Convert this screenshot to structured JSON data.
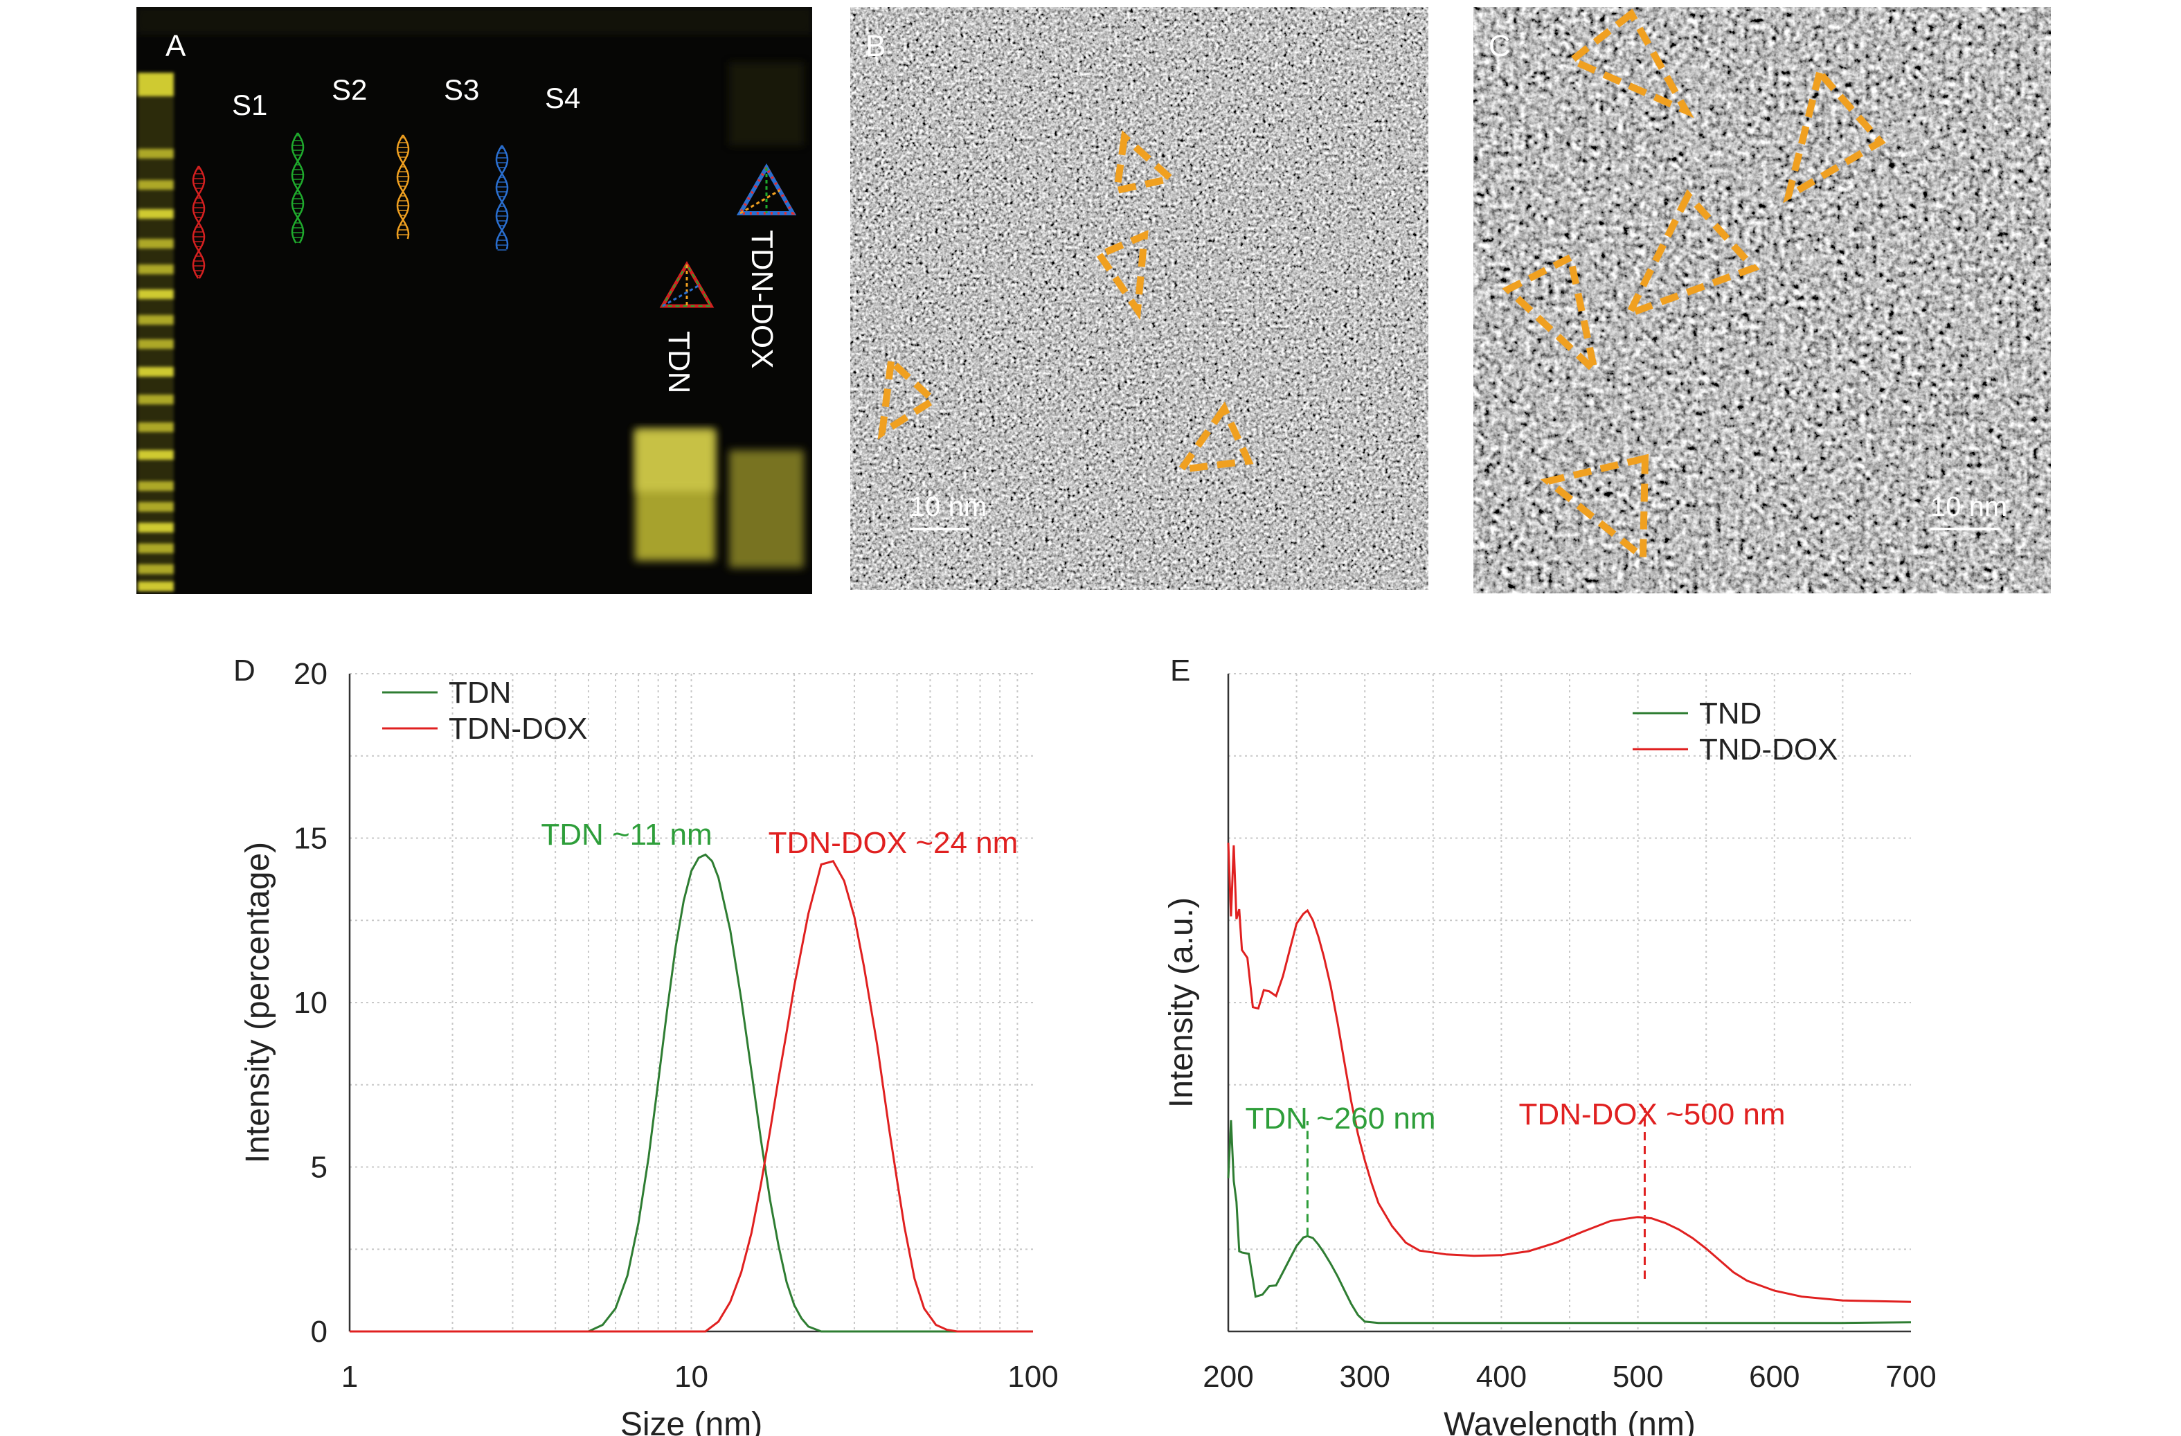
{
  "panels": {
    "a": {
      "label": "A",
      "lanes": [
        "S1",
        "S2",
        "S3",
        "S4"
      ],
      "lane_colors": [
        "#d42020",
        "#1faa2d",
        "#f0a020",
        "#2a6fd0"
      ],
      "rotated_labels": [
        "TDN",
        "TDN-DOX"
      ],
      "band_color": "#d9d332"
    },
    "b": {
      "label": "B",
      "scale_text": "10 nm",
      "marker_color": "#f0a020"
    },
    "c": {
      "label": "C",
      "scale_text": "10 nm",
      "marker_color": "#f0a020"
    }
  },
  "chart_data": [
    {
      "panel_label": "D",
      "type": "line",
      "xscale": "log",
      "xlim": [
        1,
        100
      ],
      "ylim": [
        0,
        20
      ],
      "xticks": [
        1,
        10,
        100
      ],
      "yticks": [
        0,
        5,
        10,
        15,
        20
      ],
      "xlabel": "Size (nm)",
      "ylabel": "Intensity (percentage)",
      "grid": true,
      "legend": "top-left",
      "series": [
        {
          "name": "TDN",
          "color": "#2e7d32",
          "x": [
            1,
            5,
            5.5,
            6,
            6.5,
            7,
            7.5,
            8,
            8.5,
            9,
            9.5,
            10,
            10.5,
            11,
            11.5,
            12,
            13,
            14,
            15,
            16,
            17,
            18,
            19,
            20,
            21,
            22,
            24,
            100
          ],
          "y": [
            0,
            0,
            0.2,
            0.7,
            1.7,
            3.3,
            5.3,
            7.6,
            9.8,
            11.7,
            13.1,
            14.0,
            14.4,
            14.5,
            14.3,
            13.8,
            12.2,
            10.1,
            7.9,
            5.8,
            4.0,
            2.6,
            1.5,
            0.8,
            0.4,
            0.15,
            0,
            0
          ]
        },
        {
          "name": "TDN-DOX",
          "color": "#e02020",
          "x": [
            1,
            11,
            12,
            13,
            14,
            15,
            16,
            17,
            18,
            19,
            20,
            22,
            24,
            26,
            28,
            30,
            32,
            35,
            38,
            40,
            42,
            45,
            48,
            52,
            56,
            60,
            100
          ],
          "y": [
            0,
            0,
            0.3,
            0.9,
            1.8,
            3.0,
            4.5,
            6.1,
            7.7,
            9.1,
            10.5,
            12.7,
            14.2,
            14.3,
            13.7,
            12.6,
            11.1,
            8.7,
            6.1,
            4.6,
            3.2,
            1.6,
            0.7,
            0.2,
            0.05,
            0,
            0
          ]
        }
      ],
      "annotations": [
        {
          "text": "TDN ~11 nm",
          "color": "#2e9e3a",
          "x": 11,
          "y": 15.2
        },
        {
          "text": "TDN-DOX ~24 nm",
          "color": "#e02020",
          "x": 24,
          "y": 14.8
        }
      ]
    },
    {
      "panel_label": "E",
      "type": "line",
      "xlim": [
        200,
        700
      ],
      "xticks": [
        200,
        300,
        400,
        500,
        600,
        700
      ],
      "ylim": [
        0,
        100
      ],
      "xlabel": "Wavelength (nm)",
      "ylabel": "Intensity (a.u.)",
      "grid": true,
      "legend": "top-right",
      "series": [
        {
          "name": "TND",
          "color": "#2e7d32",
          "x": [
            200,
            202,
            204,
            206,
            208,
            210,
            215,
            220,
            225,
            230,
            235,
            240,
            245,
            250,
            255,
            258,
            262,
            266,
            270,
            275,
            280,
            285,
            290,
            295,
            300,
            310,
            320,
            350,
            400,
            450,
            500,
            550,
            600,
            650,
            700
          ],
          "y": [
            26,
            33,
            22,
            17,
            14,
            12,
            10,
            8,
            6.5,
            6,
            7,
            9,
            11,
            13,
            14.3,
            14.5,
            14.2,
            13.2,
            12,
            10.3,
            8.4,
            6.3,
            4.2,
            2.5,
            1.5,
            1.3,
            1.3,
            1.3,
            1.3,
            1.3,
            1.3,
            1.3,
            1.3,
            1.3,
            1.4
          ]
        },
        {
          "name": "TND-DOX",
          "color": "#e02020",
          "x": [
            200,
            202,
            204,
            206,
            208,
            210,
            214,
            218,
            222,
            226,
            230,
            235,
            240,
            245,
            250,
            255,
            258,
            262,
            266,
            270,
            275,
            280,
            285,
            290,
            295,
            300,
            305,
            310,
            320,
            330,
            340,
            360,
            380,
            400,
            420,
            440,
            460,
            480,
            500,
            510,
            520,
            530,
            540,
            550,
            560,
            570,
            580,
            600,
            620,
            650,
            700
          ],
          "y": [
            77,
            64,
            73,
            60,
            66,
            58,
            55,
            52,
            50,
            51,
            49,
            51,
            54,
            58,
            62,
            63.5,
            64,
            62.5,
            60,
            57,
            52.5,
            47,
            41,
            35,
            30,
            26,
            22.5,
            19.5,
            16,
            13.5,
            12.3,
            11.7,
            11.5,
            11.6,
            12.2,
            13.5,
            15.2,
            16.8,
            17.4,
            17.2,
            16.5,
            15.5,
            14.2,
            12.6,
            10.8,
            9,
            7.7,
            6.2,
            5.3,
            4.7,
            4.5
          ]
        }
      ],
      "annotations": [
        {
          "text": "TDN ~260 nm",
          "color": "#2e9e3a",
          "x": 258,
          "y": 14.5,
          "marker_top": 32
        },
        {
          "text": "TDN-DOX ~500 nm",
          "color": "#e02020",
          "x": 505,
          "y": 8,
          "marker_top": 34
        }
      ]
    }
  ]
}
